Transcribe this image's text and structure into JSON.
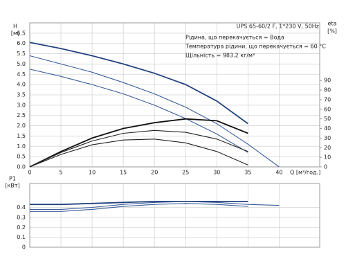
{
  "chart_data": [
    {
      "type": "line",
      "ylabel": "H",
      "ylabel_unit": "[м]",
      "y2label": "eta",
      "y2label_unit": "[%]",
      "xlabel": "Q [м³/год.]",
      "info": [
        "UPS 65-60/2 F, 1*230 V, 50Hz",
        "Рідина, що перекачується = Вода",
        "Температура рідини, що перекачується = 60 °C",
        "Щільність = 983.2 кг/м³"
      ],
      "x": [
        0,
        5,
        10,
        15,
        20,
        25,
        30,
        35,
        40
      ],
      "xlim": [
        0,
        46.5
      ],
      "xticks": [
        0,
        5,
        10,
        15,
        20,
        25,
        30,
        35,
        40
      ],
      "ylim": [
        0,
        7
      ],
      "yticks": [
        {
          "value": 0,
          "label": "0.0"
        },
        0.5,
        {
          "value": 1,
          "label": "1.0"
        },
        1.5,
        {
          "value": 2,
          "label": "2.0"
        },
        2.5,
        {
          "value": 3,
          "label": "3.0"
        },
        3.5,
        {
          "value": 4,
          "label": "4.0"
        },
        4.5,
        {
          "value": 5,
          "label": "5.0"
        },
        5.5,
        {
          "value": 6,
          "label": "6.0"
        },
        6.5
      ],
      "y2lim": [
        0,
        150
      ],
      "y2ticks": [
        0,
        10,
        20,
        30,
        40,
        50,
        60,
        70,
        80,
        90
      ],
      "grid": true,
      "series": [
        {
          "color": "#23427f",
          "values": [
            6.05,
            5.75,
            5.4,
            5.0,
            4.55,
            4.0,
            3.2,
            2.1,
            null
          ]
        },
        {
          "color": "#3a5d99",
          "values": [
            5.4,
            5.0,
            4.6,
            4.1,
            3.55,
            2.9,
            2.1,
            1.1,
            0.0
          ]
        },
        {
          "color": "#3a5d99",
          "values": [
            4.75,
            4.4,
            4.0,
            3.55,
            3.0,
            2.35,
            1.6,
            0.7,
            null
          ]
        },
        {
          "color": "#111111",
          "axis": "y2",
          "values": [
            0,
            16,
            30,
            40,
            46,
            50,
            48,
            35,
            null
          ]
        },
        {
          "color": "#222222",
          "axis": "y2",
          "values": [
            0,
            15,
            27,
            35,
            38,
            36,
            29,
            16,
            null
          ]
        },
        {
          "color": "#222222",
          "axis": "y2",
          "values": [
            0,
            13,
            23,
            28,
            29,
            25,
            16,
            2,
            null
          ]
        }
      ]
    },
    {
      "type": "line",
      "ylabel": "P1",
      "ylabel_unit": "[кВт]",
      "x": [
        0,
        5,
        10,
        15,
        20,
        25,
        30,
        35,
        40
      ],
      "xlim": [
        0,
        46.5
      ],
      "ylim": [
        0,
        0.64
      ],
      "yticks": [
        0,
        0.1,
        0.2,
        0.3,
        0.4
      ],
      "grid": true,
      "series": [
        {
          "color": "#23427f",
          "values": [
            0.43,
            0.43,
            0.44,
            0.45,
            0.46,
            0.46,
            0.46,
            0.46,
            null
          ]
        },
        {
          "color": "#3a5d99",
          "values": [
            0.38,
            0.38,
            0.4,
            0.43,
            0.45,
            0.46,
            0.45,
            0.43,
            0.42
          ]
        },
        {
          "color": "#3a5d99",
          "values": [
            0.36,
            0.36,
            0.38,
            0.41,
            0.43,
            0.44,
            0.43,
            0.41,
            null
          ]
        }
      ]
    }
  ]
}
